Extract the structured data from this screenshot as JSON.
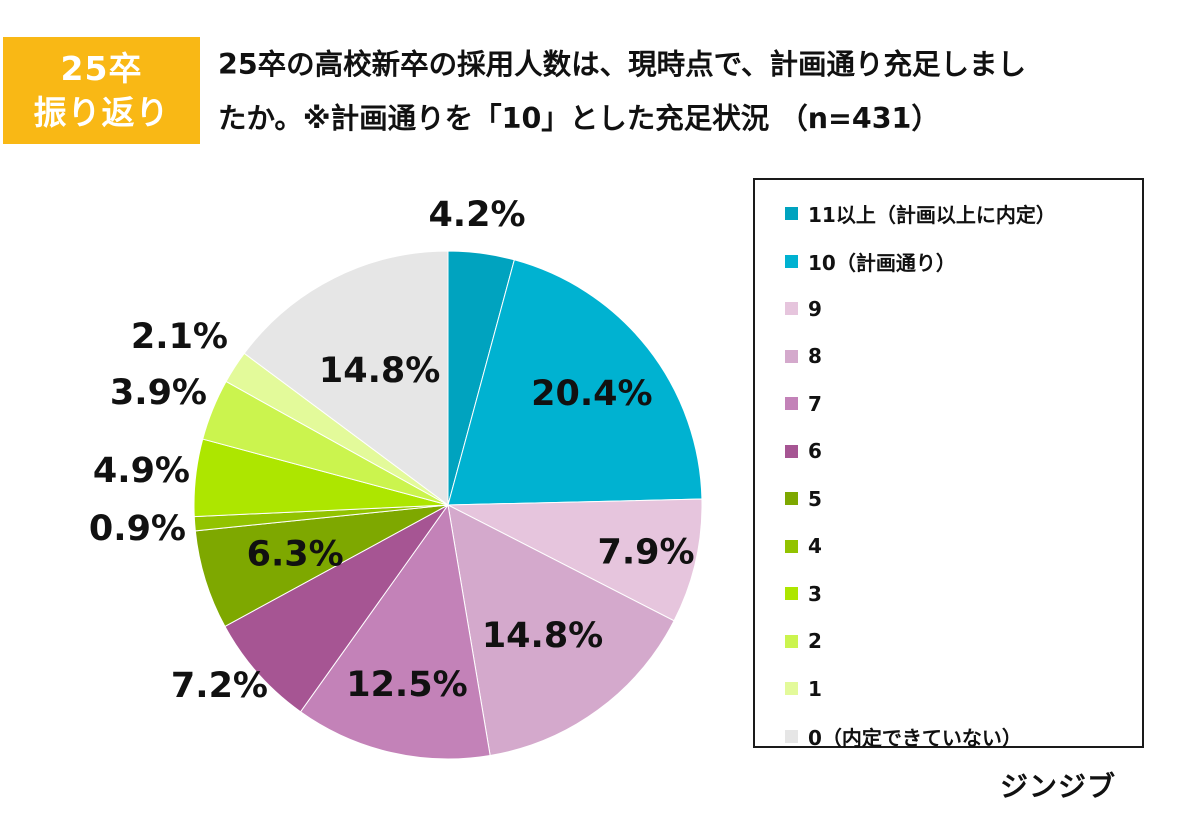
{
  "badge": {
    "line1": "25卒",
    "line2": "振り返り"
  },
  "title": {
    "line1": "25卒の高校新卒の採用人数は、現時点で、計画通り充足しまし",
    "line2": "たか。※計画通りを「10」とした充足状況 （n=431）"
  },
  "chart_data": {
    "type": "pie",
    "start_angle_deg": 0,
    "direction": "clockwise",
    "slices": [
      {
        "label": "11以上（計画以上に内定）",
        "value": 4.2,
        "display": "4.2%",
        "color": "#00a3bf"
      },
      {
        "label": "10（計画通り）",
        "value": 20.4,
        "display": "20.4%",
        "color": "#00b2d1"
      },
      {
        "label": "9",
        "value": 7.9,
        "display": "7.9%",
        "color": "#e6c5dd"
      },
      {
        "label": "8",
        "value": 14.8,
        "display": "14.8%",
        "color": "#d4a9cc"
      },
      {
        "label": "7",
        "value": 12.5,
        "display": "12.5%",
        "color": "#c382b8"
      },
      {
        "label": "6",
        "value": 7.2,
        "display": "7.2%",
        "color": "#a65593"
      },
      {
        "label": "5",
        "value": 6.3,
        "display": "6.3%",
        "color": "#7ea800"
      },
      {
        "label": "4",
        "value": 0.9,
        "display": "0.9%",
        "color": "#92c300"
      },
      {
        "label": "3",
        "value": 4.9,
        "display": "4.9%",
        "color": "#ade600"
      },
      {
        "label": "2",
        "value": 3.9,
        "display": "3.9%",
        "color": "#cbf44e"
      },
      {
        "label": "1",
        "value": 2.1,
        "display": "2.1%",
        "color": "#e3fa9a"
      },
      {
        "label": "0（内定できていない）",
        "value": 14.8,
        "display": "14.8%",
        "color": "#e6e6e6"
      }
    ],
    "legend_position": "right"
  },
  "brand": "ジンジブ"
}
